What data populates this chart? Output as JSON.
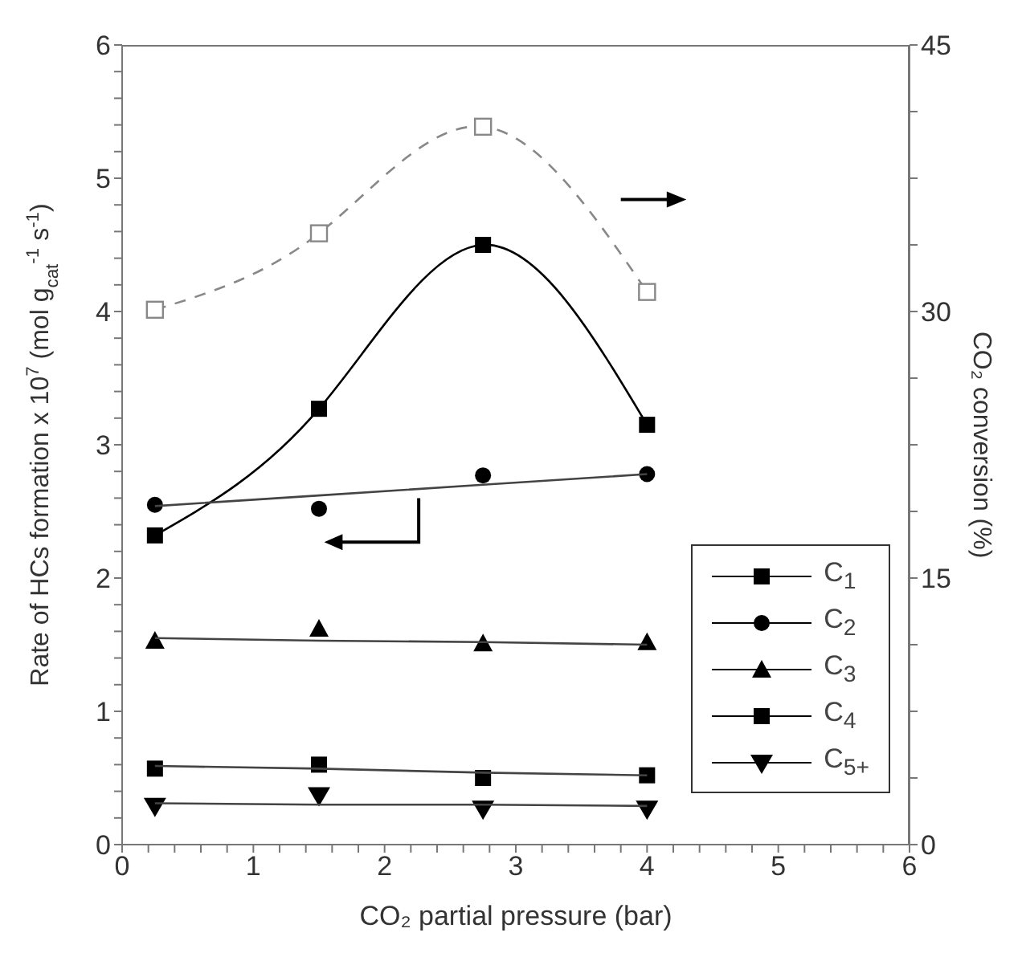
{
  "chart_data": {
    "type": "scatter",
    "xlabel": "CO₂ partial pressure (bar)",
    "ylabel": "Rate of HCs formation x 10$^{7}$ (mol g$_{cat}$$^{-1}$ s$^{-1}$)",
    "y2label": "CO₂ conversion (%)",
    "x": [
      0.25,
      1.5,
      2.75,
      4
    ],
    "series": [
      {
        "name": "C$_{1}$",
        "type": "line",
        "color": "#000000",
        "marker": "square",
        "line_style": "solid",
        "values": [
          2.32,
          3.27,
          4.5,
          3.15
        ]
      },
      {
        "name": "C$_{2}$",
        "color": "#000000",
        "marker": "circle",
        "values": [
          2.55,
          2.52,
          2.77,
          2.78
        ]
      },
      {
        "type": "line",
        "color": "#444444",
        "marker": "none",
        "line_style": "solid",
        "values": [
          2.54,
          2.62,
          2.7,
          2.78
        ]
      },
      {
        "name": "C$_{3}$",
        "color": "#000000",
        "marker": "triangle",
        "values": [
          1.53,
          1.62,
          1.51,
          1.52
        ]
      },
      {
        "type": "line",
        "color": "#444444",
        "marker": "none",
        "line_style": "solid",
        "values": [
          1.55,
          1.53,
          1.52,
          1.5
        ]
      },
      {
        "name": "C$_{4}$",
        "color": "#000000",
        "marker": "square",
        "values": [
          0.57,
          0.6,
          0.5,
          0.52
        ]
      },
      {
        "type": "line",
        "color": "#444444",
        "marker": "none",
        "line_style": "solid",
        "values": [
          0.59,
          0.57,
          0.54,
          0.52
        ]
      },
      {
        "name": "C$_{5+}$",
        "color": "#000000",
        "marker": "triangle-down",
        "values": [
          0.29,
          0.37,
          0.27,
          0.27
        ]
      },
      {
        "type": "line",
        "color": "#444444",
        "marker": "none",
        "line_style": "solid",
        "values": [
          0.31,
          0.3,
          0.3,
          0.29
        ]
      },
      {
        "type": "line",
        "axis": "y2",
        "color": "#888888",
        "marker": "square-open",
        "line_style": "dashed",
        "values": [
          30.1,
          34.4,
          40.4,
          31.1
        ]
      }
    ],
    "xlim": [
      0,
      6
    ],
    "xticks": [
      0,
      {
        "value": 0.2,
        "label": null
      },
      {
        "value": 0.4,
        "label": null
      },
      {
        "value": 0.6,
        "label": null
      },
      {
        "value": 0.8,
        "label": null
      },
      1,
      {
        "value": 1.2,
        "label": null
      },
      {
        "value": 1.4,
        "label": null
      },
      {
        "value": 1.6,
        "label": null
      },
      {
        "value": 1.8,
        "label": null
      },
      2,
      {
        "value": 2.2,
        "label": null
      },
      {
        "value": 2.4,
        "label": null
      },
      {
        "value": 2.6,
        "label": null
      },
      {
        "value": 2.8,
        "label": null
      },
      3,
      {
        "value": 3.2,
        "label": null
      },
      {
        "value": 3.4,
        "label": null
      },
      {
        "value": 3.6,
        "label": null
      },
      {
        "value": 3.8,
        "label": null
      },
      4,
      {
        "value": 4.2,
        "label": null
      },
      {
        "value": 4.4,
        "label": null
      },
      {
        "value": 4.6,
        "label": null
      },
      {
        "value": 4.8,
        "label": null
      },
      5,
      {
        "value": 5.2,
        "label": null
      },
      {
        "value": 5.4,
        "label": null
      },
      {
        "value": 5.6,
        "label": null
      },
      {
        "value": 5.8,
        "label": null
      },
      6
    ],
    "ylim": [
      0,
      6
    ],
    "yticks": [
      0,
      {
        "value": 0.2,
        "label": null
      },
      {
        "value": 0.4,
        "label": null
      },
      {
        "value": 0.6,
        "label": null
      },
      {
        "value": 0.8,
        "label": null
      },
      1,
      {
        "value": 1.2,
        "label": null
      },
      {
        "value": 1.4,
        "label": null
      },
      {
        "value": 1.6,
        "label": null
      },
      {
        "value": 1.8,
        "label": null
      },
      2,
      {
        "value": 2.2,
        "label": null
      },
      {
        "value": 2.4,
        "label": null
      },
      {
        "value": 2.6,
        "label": null
      },
      {
        "value": 2.8,
        "label": null
      },
      3,
      {
        "value": 3.2,
        "label": null
      },
      {
        "value": 3.4,
        "label": null
      },
      {
        "value": 3.6,
        "label": null
      },
      {
        "value": 3.8,
        "label": null
      },
      4,
      {
        "value": 4.2,
        "label": null
      },
      {
        "value": 4.4,
        "label": null
      },
      {
        "value": 4.6,
        "label": null
      },
      {
        "value": 4.8,
        "label": null
      },
      5,
      {
        "value": 5.2,
        "label": null
      },
      {
        "value": 5.4,
        "label": null
      },
      {
        "value": 5.6,
        "label": null
      },
      {
        "value": 5.8,
        "label": null
      },
      6
    ],
    "y2lim": [
      0,
      45
    ],
    "y2ticks": [
      0,
      {
        "value": 3.75,
        "label": null
      },
      {
        "value": 7.5,
        "label": null
      },
      {
        "value": 11.25,
        "label": null
      },
      15,
      {
        "value": 18.75,
        "label": null
      },
      {
        "value": 22.5,
        "label": null
      },
      {
        "value": 26.25,
        "label": null
      },
      30,
      {
        "value": 33.75,
        "label": null
      },
      {
        "value": 37.5,
        "label": null
      },
      {
        "value": 41.25,
        "label": null
      },
      45
    ],
    "grid": false,
    "legend": "bottom right"
  }
}
